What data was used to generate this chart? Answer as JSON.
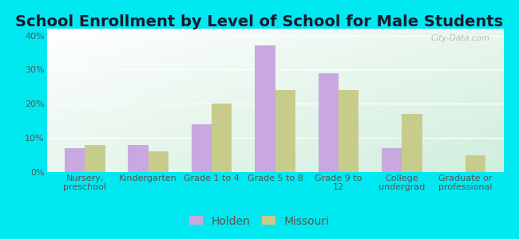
{
  "title": "School Enrollment by Level of School for Male Students",
  "categories": [
    "Nursery,\npreschool",
    "Kindergarten",
    "Grade 1 to 4",
    "Grade 5 to 8",
    "Grade 9 to\n12",
    "College\nundergrad",
    "Graduate or\nprofessional"
  ],
  "holden": [
    7,
    8,
    14,
    37,
    29,
    7,
    0
  ],
  "missouri": [
    8,
    6,
    20,
    24,
    24,
    17,
    5
  ],
  "holden_color": "#c9a8e0",
  "missouri_color": "#c8cc8a",
  "background_color": "#00e8f0",
  "plot_bg_top_left": "#e8f5e9",
  "plot_bg_bottom_right": "#ffffff",
  "title_fontsize": 14,
  "tick_fontsize": 8,
  "legend_fontsize": 10,
  "ylabel_ticks": [
    0,
    10,
    20,
    30,
    40
  ],
  "ylabel_labels": [
    "0%",
    "10%",
    "20%",
    "30%",
    "40%"
  ],
  "ylim": [
    0,
    42
  ],
  "bar_width": 0.32
}
